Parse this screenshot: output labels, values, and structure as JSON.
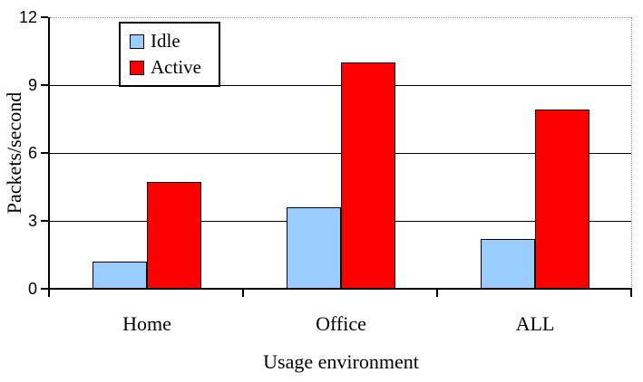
{
  "chart_data": {
    "type": "bar",
    "categories": [
      "Home",
      "Office",
      "ALL"
    ],
    "series": [
      {
        "name": "Idle",
        "color": "#99CCFF",
        "values": [
          1.2,
          3.6,
          2.2
        ]
      },
      {
        "name": "Active",
        "color": "#FF0000",
        "values": [
          4.7,
          10.0,
          7.9
        ]
      }
    ],
    "title": "",
    "xlabel": "Usage environment",
    "ylabel": "Packets/second",
    "ylim": [
      0,
      12
    ],
    "yticks": [
      0,
      3,
      6,
      9,
      12
    ],
    "grid": "horizontal-major-solid, top-and-right-border-dotted",
    "legend_position": "top-left-inside",
    "axis_color": "#000000",
    "dotted_border_color": "#8a8a8a"
  }
}
